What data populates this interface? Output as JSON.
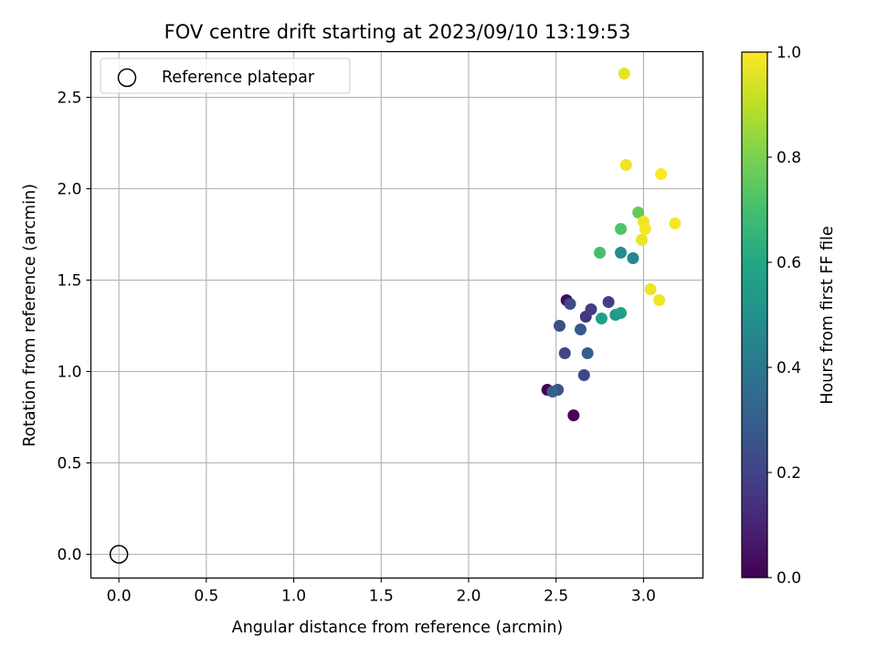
{
  "chart_data": {
    "type": "scatter",
    "title": "FOV centre drift starting at 2023/09/10 13:19:53",
    "xlabel": "Angular distance from reference (arcmin)",
    "ylabel": "Rotation from reference (arcmin)",
    "xlim": [
      -0.16,
      3.34
    ],
    "ylim": [
      -0.13,
      2.75
    ],
    "xticks": [
      "0.0",
      "0.5",
      "1.0",
      "1.5",
      "2.0",
      "2.5",
      "3.0"
    ],
    "yticks": [
      "0.0",
      "0.5",
      "1.0",
      "1.5",
      "2.0",
      "2.5"
    ],
    "grid": true,
    "legend": {
      "position": "top-left",
      "entries": [
        "Reference platepar"
      ]
    },
    "reference_point": {
      "x": 0.0,
      "y": 0.0
    },
    "colorbar": {
      "label": "Hours from first FF file",
      "range": [
        0.0,
        1.0
      ],
      "ticks": [
        "0.0",
        "0.2",
        "0.4",
        "0.6",
        "0.8",
        "1.0"
      ],
      "colormap": "viridis"
    },
    "series": [
      {
        "points": [
          {
            "x": 2.45,
            "y": 0.9,
            "c": 0.0
          },
          {
            "x": 2.6,
            "y": 0.76,
            "c": 0.01
          },
          {
            "x": 2.56,
            "y": 1.39,
            "c": 0.03
          },
          {
            "x": 2.51,
            "y": 0.9,
            "c": 0.25
          },
          {
            "x": 2.48,
            "y": 0.89,
            "c": 0.3
          },
          {
            "x": 2.52,
            "y": 1.25,
            "c": 0.24
          },
          {
            "x": 2.55,
            "y": 1.1,
            "c": 0.2
          },
          {
            "x": 2.58,
            "y": 1.37,
            "c": 0.22
          },
          {
            "x": 2.64,
            "y": 1.23,
            "c": 0.28
          },
          {
            "x": 2.66,
            "y": 0.98,
            "c": 0.21
          },
          {
            "x": 2.67,
            "y": 1.3,
            "c": 0.16
          },
          {
            "x": 2.68,
            "y": 1.1,
            "c": 0.3
          },
          {
            "x": 2.7,
            "y": 1.34,
            "c": 0.18
          },
          {
            "x": 2.8,
            "y": 1.38,
            "c": 0.19
          },
          {
            "x": 2.76,
            "y": 1.29,
            "c": 0.56
          },
          {
            "x": 2.84,
            "y": 1.31,
            "c": 0.54
          },
          {
            "x": 2.87,
            "y": 1.32,
            "c": 0.56
          },
          {
            "x": 2.87,
            "y": 1.65,
            "c": 0.48
          },
          {
            "x": 2.94,
            "y": 1.62,
            "c": 0.46
          },
          {
            "x": 2.75,
            "y": 1.65,
            "c": 0.7
          },
          {
            "x": 2.87,
            "y": 1.78,
            "c": 0.72
          },
          {
            "x": 2.97,
            "y": 1.87,
            "c": 0.76
          },
          {
            "x": 2.99,
            "y": 1.72,
            "c": 0.97
          },
          {
            "x": 3.0,
            "y": 1.82,
            "c": 0.98
          },
          {
            "x": 3.01,
            "y": 1.78,
            "c": 0.99
          },
          {
            "x": 3.04,
            "y": 1.45,
            "c": 0.97
          },
          {
            "x": 3.09,
            "y": 1.39,
            "c": 0.98
          },
          {
            "x": 3.1,
            "y": 2.08,
            "c": 1.0
          },
          {
            "x": 3.18,
            "y": 1.81,
            "c": 0.99
          },
          {
            "x": 2.9,
            "y": 2.13,
            "c": 0.98
          },
          {
            "x": 2.89,
            "y": 2.63,
            "c": 0.96
          }
        ]
      }
    ]
  }
}
